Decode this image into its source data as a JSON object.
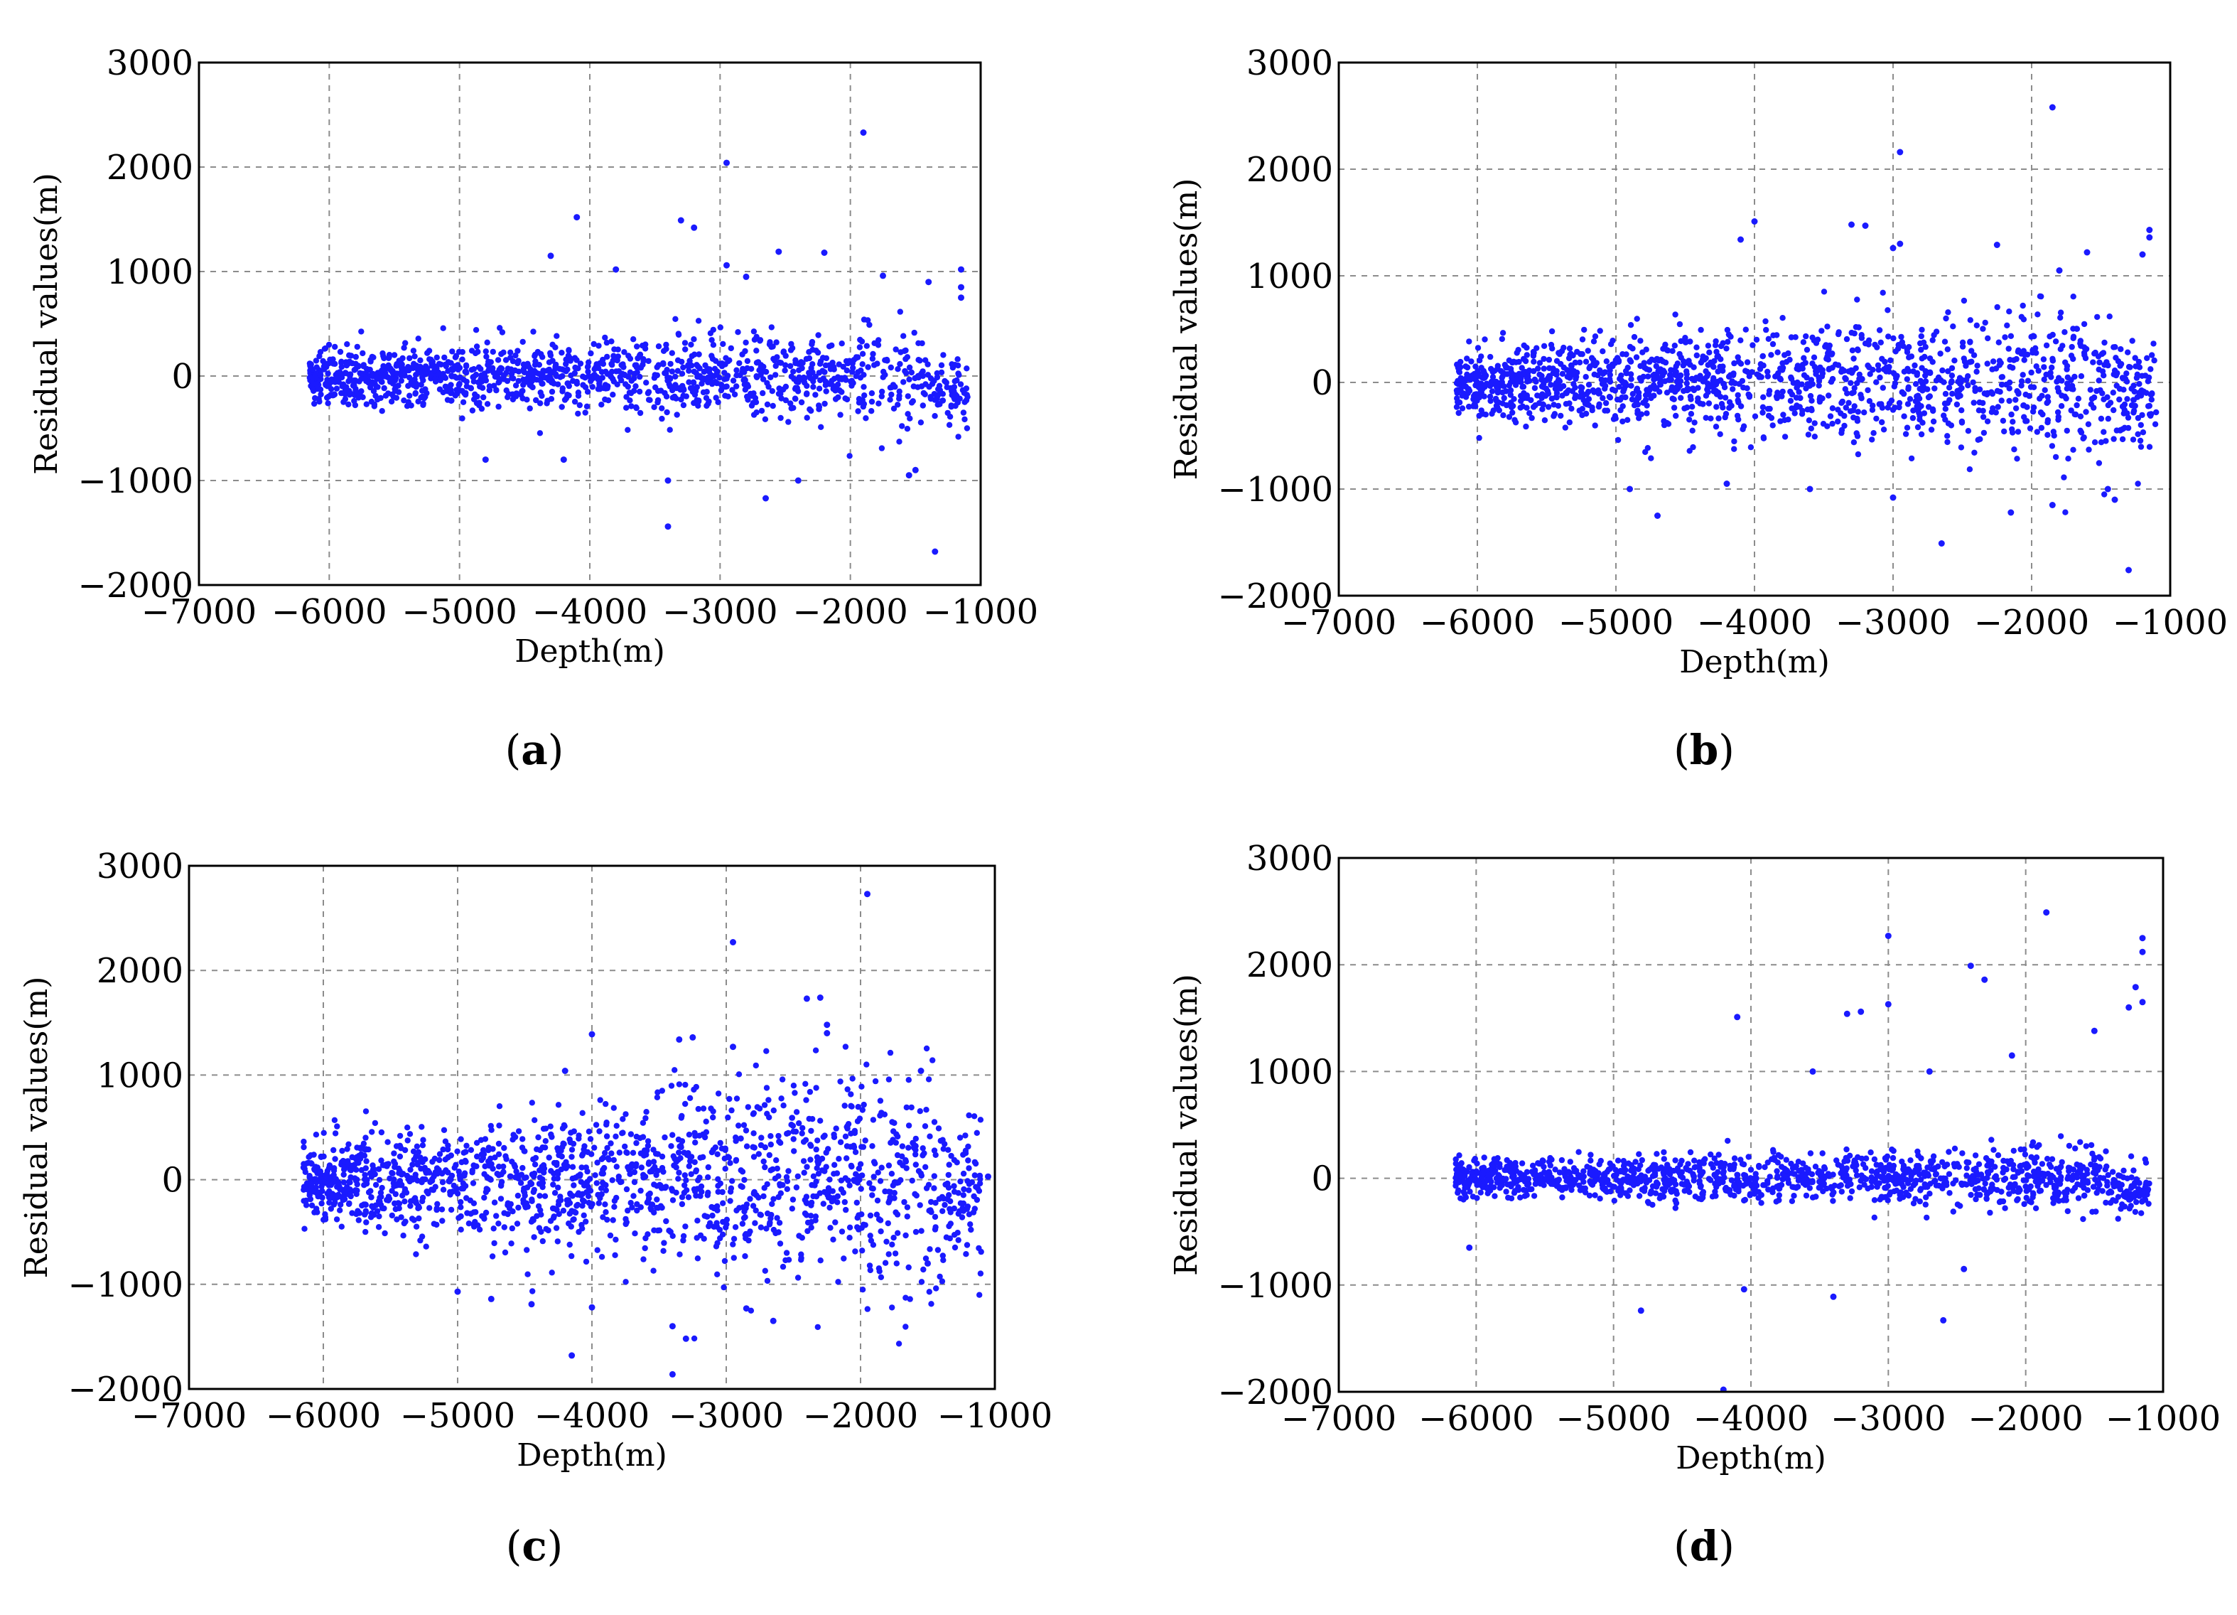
{
  "colors": {
    "point": "#1a1aff",
    "grid": "#8c8c8c",
    "axis": "#000000"
  },
  "chart_data": [
    {
      "type": "scatter",
      "panel": "a",
      "caption_open": "(",
      "caption_letter": "a",
      "caption_close": ")",
      "xlabel": "Depth(m)",
      "ylabel": "Residual values(m)",
      "xlim": [
        -7000,
        -1000
      ],
      "ylim": [
        -2000,
        3000
      ],
      "xticks": [
        -7000,
        -6000,
        -5000,
        -4000,
        -3000,
        -2000,
        -1000
      ],
      "yticks": [
        -2000,
        -1000,
        0,
        1000,
        2000,
        3000
      ],
      "xtick_labels": [
        "−7000",
        "−6000",
        "−5000",
        "−4000",
        "−3000",
        "−2000",
        "−1000"
      ],
      "ytick_labels": [
        "−2000",
        "−1000",
        "0",
        "1000",
        "2000",
        "3000"
      ],
      "grid": true,
      "x_range": [
        -6150,
        -1100
      ],
      "band_start": 120,
      "band_end": 240,
      "n_points": 1300,
      "outliers": [
        {
          "x": -1900,
          "y": 2330
        },
        {
          "x": -2950,
          "y": 2040
        },
        {
          "x": -4100,
          "y": 1520
        },
        {
          "x": -3300,
          "y": 1490
        },
        {
          "x": -3200,
          "y": 1420
        },
        {
          "x": -4300,
          "y": 1150
        },
        {
          "x": -2550,
          "y": 1190
        },
        {
          "x": -2200,
          "y": 1180
        },
        {
          "x": -3800,
          "y": 1020
        },
        {
          "x": -2950,
          "y": 1060
        },
        {
          "x": -1150,
          "y": 1020
        },
        {
          "x": -1400,
          "y": 900
        },
        {
          "x": -1150,
          "y": 850
        },
        {
          "x": -1150,
          "y": 750
        },
        {
          "x": -2800,
          "y": 950
        },
        {
          "x": -1750,
          "y": 960
        },
        {
          "x": -3400,
          "y": -1440
        },
        {
          "x": -2650,
          "y": -1170
        },
        {
          "x": -1350,
          "y": -1680
        },
        {
          "x": -1500,
          "y": -900
        },
        {
          "x": -4200,
          "y": -800
        },
        {
          "x": -3400,
          "y": -1000
        },
        {
          "x": -4800,
          "y": -800
        },
        {
          "x": -1550,
          "y": -950
        },
        {
          "x": -2400,
          "y": -1000
        }
      ]
    },
    {
      "type": "scatter",
      "panel": "b",
      "caption_open": "(",
      "caption_letter": "b",
      "caption_close": ")",
      "xlabel": "Depth(m)",
      "ylabel": "Residual values(m)",
      "xlim": [
        -7000,
        -1000
      ],
      "ylim": [
        -2000,
        3000
      ],
      "xticks": [
        -7000,
        -6000,
        -5000,
        -4000,
        -3000,
        -2000,
        -1000
      ],
      "yticks": [
        -2000,
        -1000,
        0,
        1000,
        2000,
        3000
      ],
      "xtick_labels": [
        "−7000",
        "−6000",
        "−5000",
        "−4000",
        "−3000",
        "−2000",
        "−1000"
      ],
      "ytick_labels": [
        "−2000",
        "−1000",
        "0",
        "1000",
        "2000",
        "3000"
      ],
      "grid": true,
      "x_range": [
        -6150,
        -1100
      ],
      "band_start": 150,
      "band_end": 420,
      "n_points": 1500,
      "outliers": [
        {
          "x": -1850,
          "y": 2580
        },
        {
          "x": -2950,
          "y": 2160
        },
        {
          "x": -4000,
          "y": 1510
        },
        {
          "x": -3300,
          "y": 1480
        },
        {
          "x": -3200,
          "y": 1470
        },
        {
          "x": -1150,
          "y": 1430
        },
        {
          "x": -1150,
          "y": 1360
        },
        {
          "x": -4100,
          "y": 1340
        },
        {
          "x": -2250,
          "y": 1290
        },
        {
          "x": -1600,
          "y": 1220
        },
        {
          "x": -1200,
          "y": 1200
        },
        {
          "x": -2950,
          "y": 1300
        },
        {
          "x": -3000,
          "y": 1260
        },
        {
          "x": -1800,
          "y": 1050
        },
        {
          "x": -2650,
          "y": -1510
        },
        {
          "x": -1300,
          "y": -1760
        },
        {
          "x": -4700,
          "y": -1250
        },
        {
          "x": -2150,
          "y": -1220
        },
        {
          "x": -1850,
          "y": -1150
        },
        {
          "x": -1400,
          "y": -1100
        },
        {
          "x": -3000,
          "y": -1080
        },
        {
          "x": -1450,
          "y": -1000
        },
        {
          "x": -4900,
          "y": -1000
        },
        {
          "x": -4200,
          "y": -950
        },
        {
          "x": -3600,
          "y": -1000
        }
      ]
    },
    {
      "type": "scatter",
      "panel": "c",
      "caption_open": "(",
      "caption_letter": "c",
      "caption_close": ")",
      "xlabel": "Depth(m)",
      "ylabel": "Residual values(m)",
      "xlim": [
        -7000,
        -1000
      ],
      "ylim": [
        -2000,
        3000
      ],
      "xticks": [
        -7000,
        -6000,
        -5000,
        -4000,
        -3000,
        -2000,
        -1000
      ],
      "yticks": [
        -2000,
        -1000,
        0,
        1000,
        2000,
        3000
      ],
      "xtick_labels": [
        "−7000",
        "−6000",
        "−5000",
        "−4000",
        "−3000",
        "−2000",
        "−1000"
      ],
      "ytick_labels": [
        "−2000",
        "−1000",
        "0",
        "1000",
        "2000",
        "3000"
      ],
      "grid": true,
      "x_range": [
        -6150,
        -1100
      ],
      "band_start": 180,
      "band_end": 600,
      "n_points": 1600,
      "outliers": [
        {
          "x": -1950,
          "y": 2730
        },
        {
          "x": -2950,
          "y": 2270
        },
        {
          "x": -2400,
          "y": 1730
        },
        {
          "x": -2300,
          "y": 1740
        },
        {
          "x": -2250,
          "y": 1480
        },
        {
          "x": -2250,
          "y": 1400
        },
        {
          "x": -4000,
          "y": 1390
        },
        {
          "x": -3350,
          "y": 1340
        },
        {
          "x": -3250,
          "y": 1360
        },
        {
          "x": -2950,
          "y": 1270
        },
        {
          "x": -4200,
          "y": 1040
        },
        {
          "x": -1550,
          "y": 1040
        },
        {
          "x": -3400,
          "y": -1860
        },
        {
          "x": -4150,
          "y": -1680
        },
        {
          "x": -3300,
          "y": -1520
        },
        {
          "x": -3400,
          "y": -1400
        },
        {
          "x": -2650,
          "y": -1350
        },
        {
          "x": -4000,
          "y": -1220
        },
        {
          "x": -2850,
          "y": -1230
        },
        {
          "x": -4750,
          "y": -1140
        },
        {
          "x": -4450,
          "y": -1190
        },
        {
          "x": -5000,
          "y": -1070
        },
        {
          "x": -1500,
          "y": -800
        },
        {
          "x": -1050,
          "y": 30
        }
      ]
    },
    {
      "type": "scatter",
      "panel": "d",
      "caption_open": "(",
      "caption_letter": "d",
      "caption_close": ")",
      "xlabel": "Depth(m)",
      "ylabel": "Residual values(m)",
      "xlim": [
        -7000,
        -1000
      ],
      "ylim": [
        -2000,
        3000
      ],
      "xticks": [
        -7000,
        -6000,
        -5000,
        -4000,
        -3000,
        -2000,
        -1000
      ],
      "yticks": [
        -2000,
        -1000,
        0,
        1000,
        2000,
        3000
      ],
      "xtick_labels": [
        "−7000",
        "−6000",
        "−5000",
        "−4000",
        "−3000",
        "−2000",
        "−1000"
      ],
      "ytick_labels": [
        "−2000",
        "−1000",
        "0",
        "1000",
        "2000",
        "3000"
      ],
      "grid": true,
      "x_range": [
        -6150,
        -1100
      ],
      "band_start": 80,
      "band_end": 150,
      "n_points": 1300,
      "outliers": [
        {
          "x": -1850,
          "y": 2490
        },
        {
          "x": -3000,
          "y": 2270
        },
        {
          "x": -1150,
          "y": 2250
        },
        {
          "x": -1150,
          "y": 2120
        },
        {
          "x": -2400,
          "y": 1990
        },
        {
          "x": -2300,
          "y": 1860
        },
        {
          "x": -1200,
          "y": 1790
        },
        {
          "x": -1250,
          "y": 1600
        },
        {
          "x": -1150,
          "y": 1650
        },
        {
          "x": -3000,
          "y": 1630
        },
        {
          "x": -3300,
          "y": 1540
        },
        {
          "x": -3200,
          "y": 1560
        },
        {
          "x": -4100,
          "y": 1510
        },
        {
          "x": -1500,
          "y": 1380
        },
        {
          "x": -2100,
          "y": 1150
        },
        {
          "x": -3550,
          "y": 1000
        },
        {
          "x": -2700,
          "y": 1000
        },
        {
          "x": -2600,
          "y": -1330
        },
        {
          "x": -4800,
          "y": -1240
        },
        {
          "x": -3400,
          "y": -1110
        },
        {
          "x": -4050,
          "y": -1040
        },
        {
          "x": -4200,
          "y": -1980
        },
        {
          "x": -2450,
          "y": -850
        },
        {
          "x": -6050,
          "y": -650
        }
      ]
    }
  ]
}
